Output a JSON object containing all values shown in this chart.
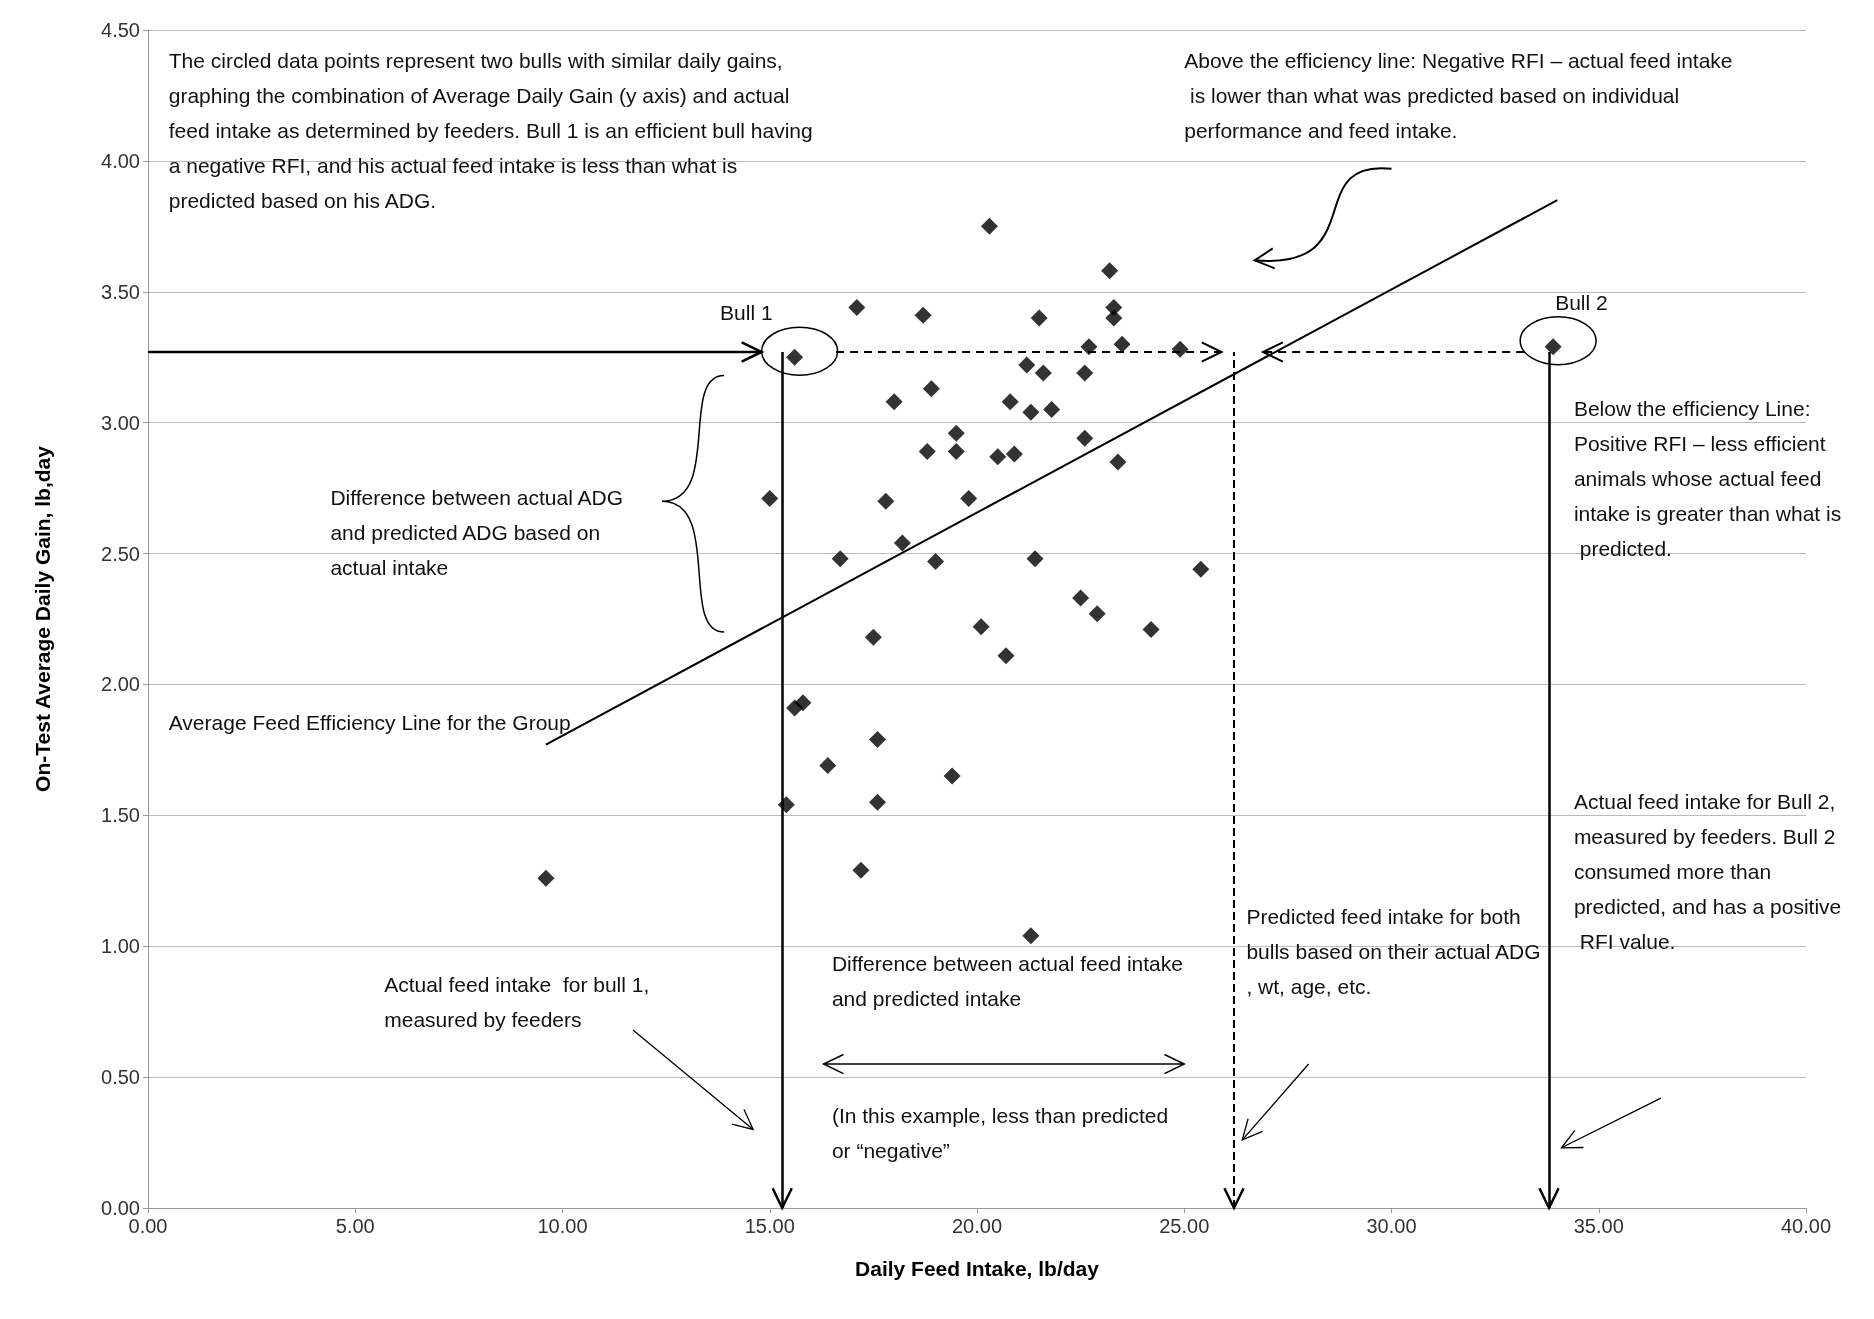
{
  "chart_data": {
    "type": "scatter",
    "xlabel": "Daily Feed Intake, lb/day",
    "ylabel": "On-Test Average Daily Gain, lb,day",
    "xlim": [
      0,
      40
    ],
    "xticks": [
      {
        "value": 0,
        "label": "0.00"
      },
      {
        "value": 5,
        "label": "5.00"
      },
      {
        "value": 10,
        "label": "10.00"
      },
      {
        "value": 15,
        "label": "15.00"
      },
      {
        "value": 20,
        "label": "20.00"
      },
      {
        "value": 25,
        "label": "25.00"
      },
      {
        "value": 30,
        "label": "30.00"
      },
      {
        "value": 35,
        "label": "35.00"
      },
      {
        "value": 40,
        "label": "40.00"
      }
    ],
    "ylim": [
      0,
      4.5
    ],
    "yticks": [
      {
        "value": 0,
        "label": "0.00"
      },
      {
        "value": 0.5,
        "label": "0.50"
      },
      {
        "value": 1,
        "label": "1.00"
      },
      {
        "value": 1.5,
        "label": "1.50"
      },
      {
        "value": 2,
        "label": "2.00"
      },
      {
        "value": 2.5,
        "label": "2.50"
      },
      {
        "value": 3,
        "label": "3.00"
      },
      {
        "value": 3.5,
        "label": "3.50"
      },
      {
        "value": 4,
        "label": "4.00"
      },
      {
        "value": 4.5,
        "label": "4.50"
      }
    ],
    "grid": "y",
    "marker": "diamond",
    "ref_lines": [
      {
        "axis": "y",
        "value": 3.27
      },
      {
        "axis": "x",
        "value": 15.3
      },
      {
        "axis": "x",
        "value": 26.2,
        "line_style": "dashed"
      },
      {
        "axis": "x",
        "value": 33.8
      }
    ],
    "series": [
      {
        "color": "#000000",
        "x": [
          9.6,
          15.0,
          15.4,
          15.6,
          15.6,
          15.8,
          16.4,
          16.7,
          17.1,
          17.2,
          17.5,
          17.6,
          17.6,
          17.8,
          18.0,
          18.2,
          18.7,
          18.8,
          18.9,
          19.0,
          19.4,
          19.5,
          19.5,
          19.8,
          20.1,
          20.3,
          20.5,
          20.7,
          20.8,
          20.9,
          21.2,
          21.3,
          21.3,
          21.4,
          21.5,
          21.6,
          21.8,
          22.5,
          22.6,
          22.6,
          22.7,
          22.9,
          23.2,
          23.3,
          23.3,
          23.4,
          23.5,
          24.2,
          24.9,
          25.4,
          33.9
        ],
        "values": [
          1.26,
          2.71,
          1.54,
          3.25,
          1.91,
          1.93,
          1.69,
          2.48,
          3.44,
          1.29,
          2.18,
          1.79,
          1.55,
          2.7,
          3.08,
          2.54,
          3.41,
          2.89,
          3.13,
          2.47,
          1.65,
          2.96,
          2.89,
          2.71,
          2.22,
          3.75,
          2.87,
          2.11,
          3.08,
          2.88,
          3.22,
          1.04,
          3.04,
          2.48,
          3.4,
          3.19,
          3.05,
          2.33,
          3.19,
          2.94,
          3.29,
          2.27,
          3.58,
          3.44,
          3.4,
          2.85,
          3.3,
          2.21,
          3.28,
          2.44,
          3.29
        ]
      },
      {
        "type": "line",
        "color": "#000000",
        "marker": "none",
        "x": [
          9.6,
          34.0
        ],
        "values": [
          1.77,
          3.85
        ]
      }
    ],
    "annotations": [
      "The circled data points represent two bulls with similar daily gains, graphing the combination of Average Daily Gain (y axis) and actual feed intake as determined by feeders. Bull 1 is an efficient bull having a negative RFI, and his actual feed intake is less than what is predicted based on his ADG.",
      "Above the efficiency line: Negative RFI – actual feed intake is lower than what was predicted based on individual performance and feed intake.",
      "Difference between actual ADG and predicted ADG based on actual intake",
      "Average Feed Efficiency Line for the Group",
      "Below the efficiency Line: Positive RFI – less efficient animals whose actual feed intake is greater than what is predicted.",
      "Actual feed intake for Bull 2, measured by feeders. Bull 2 consumed more than predicted, and has a positive RFI value.",
      "Predicted feed intake for both bulls based on their actual ADG, wt, age, etc.",
      "Difference between actual feed intake and predicted intake",
      "(In this example, less than predicted or “negative”",
      "Actual feed intake  for bull 1, measured by feeders",
      {
        "text": "Bull 1",
        "x": 15.6,
        "y": 3.25
      },
      {
        "text": "Bull 2",
        "x": 33.9,
        "y": 3.29
      }
    ]
  }
}
